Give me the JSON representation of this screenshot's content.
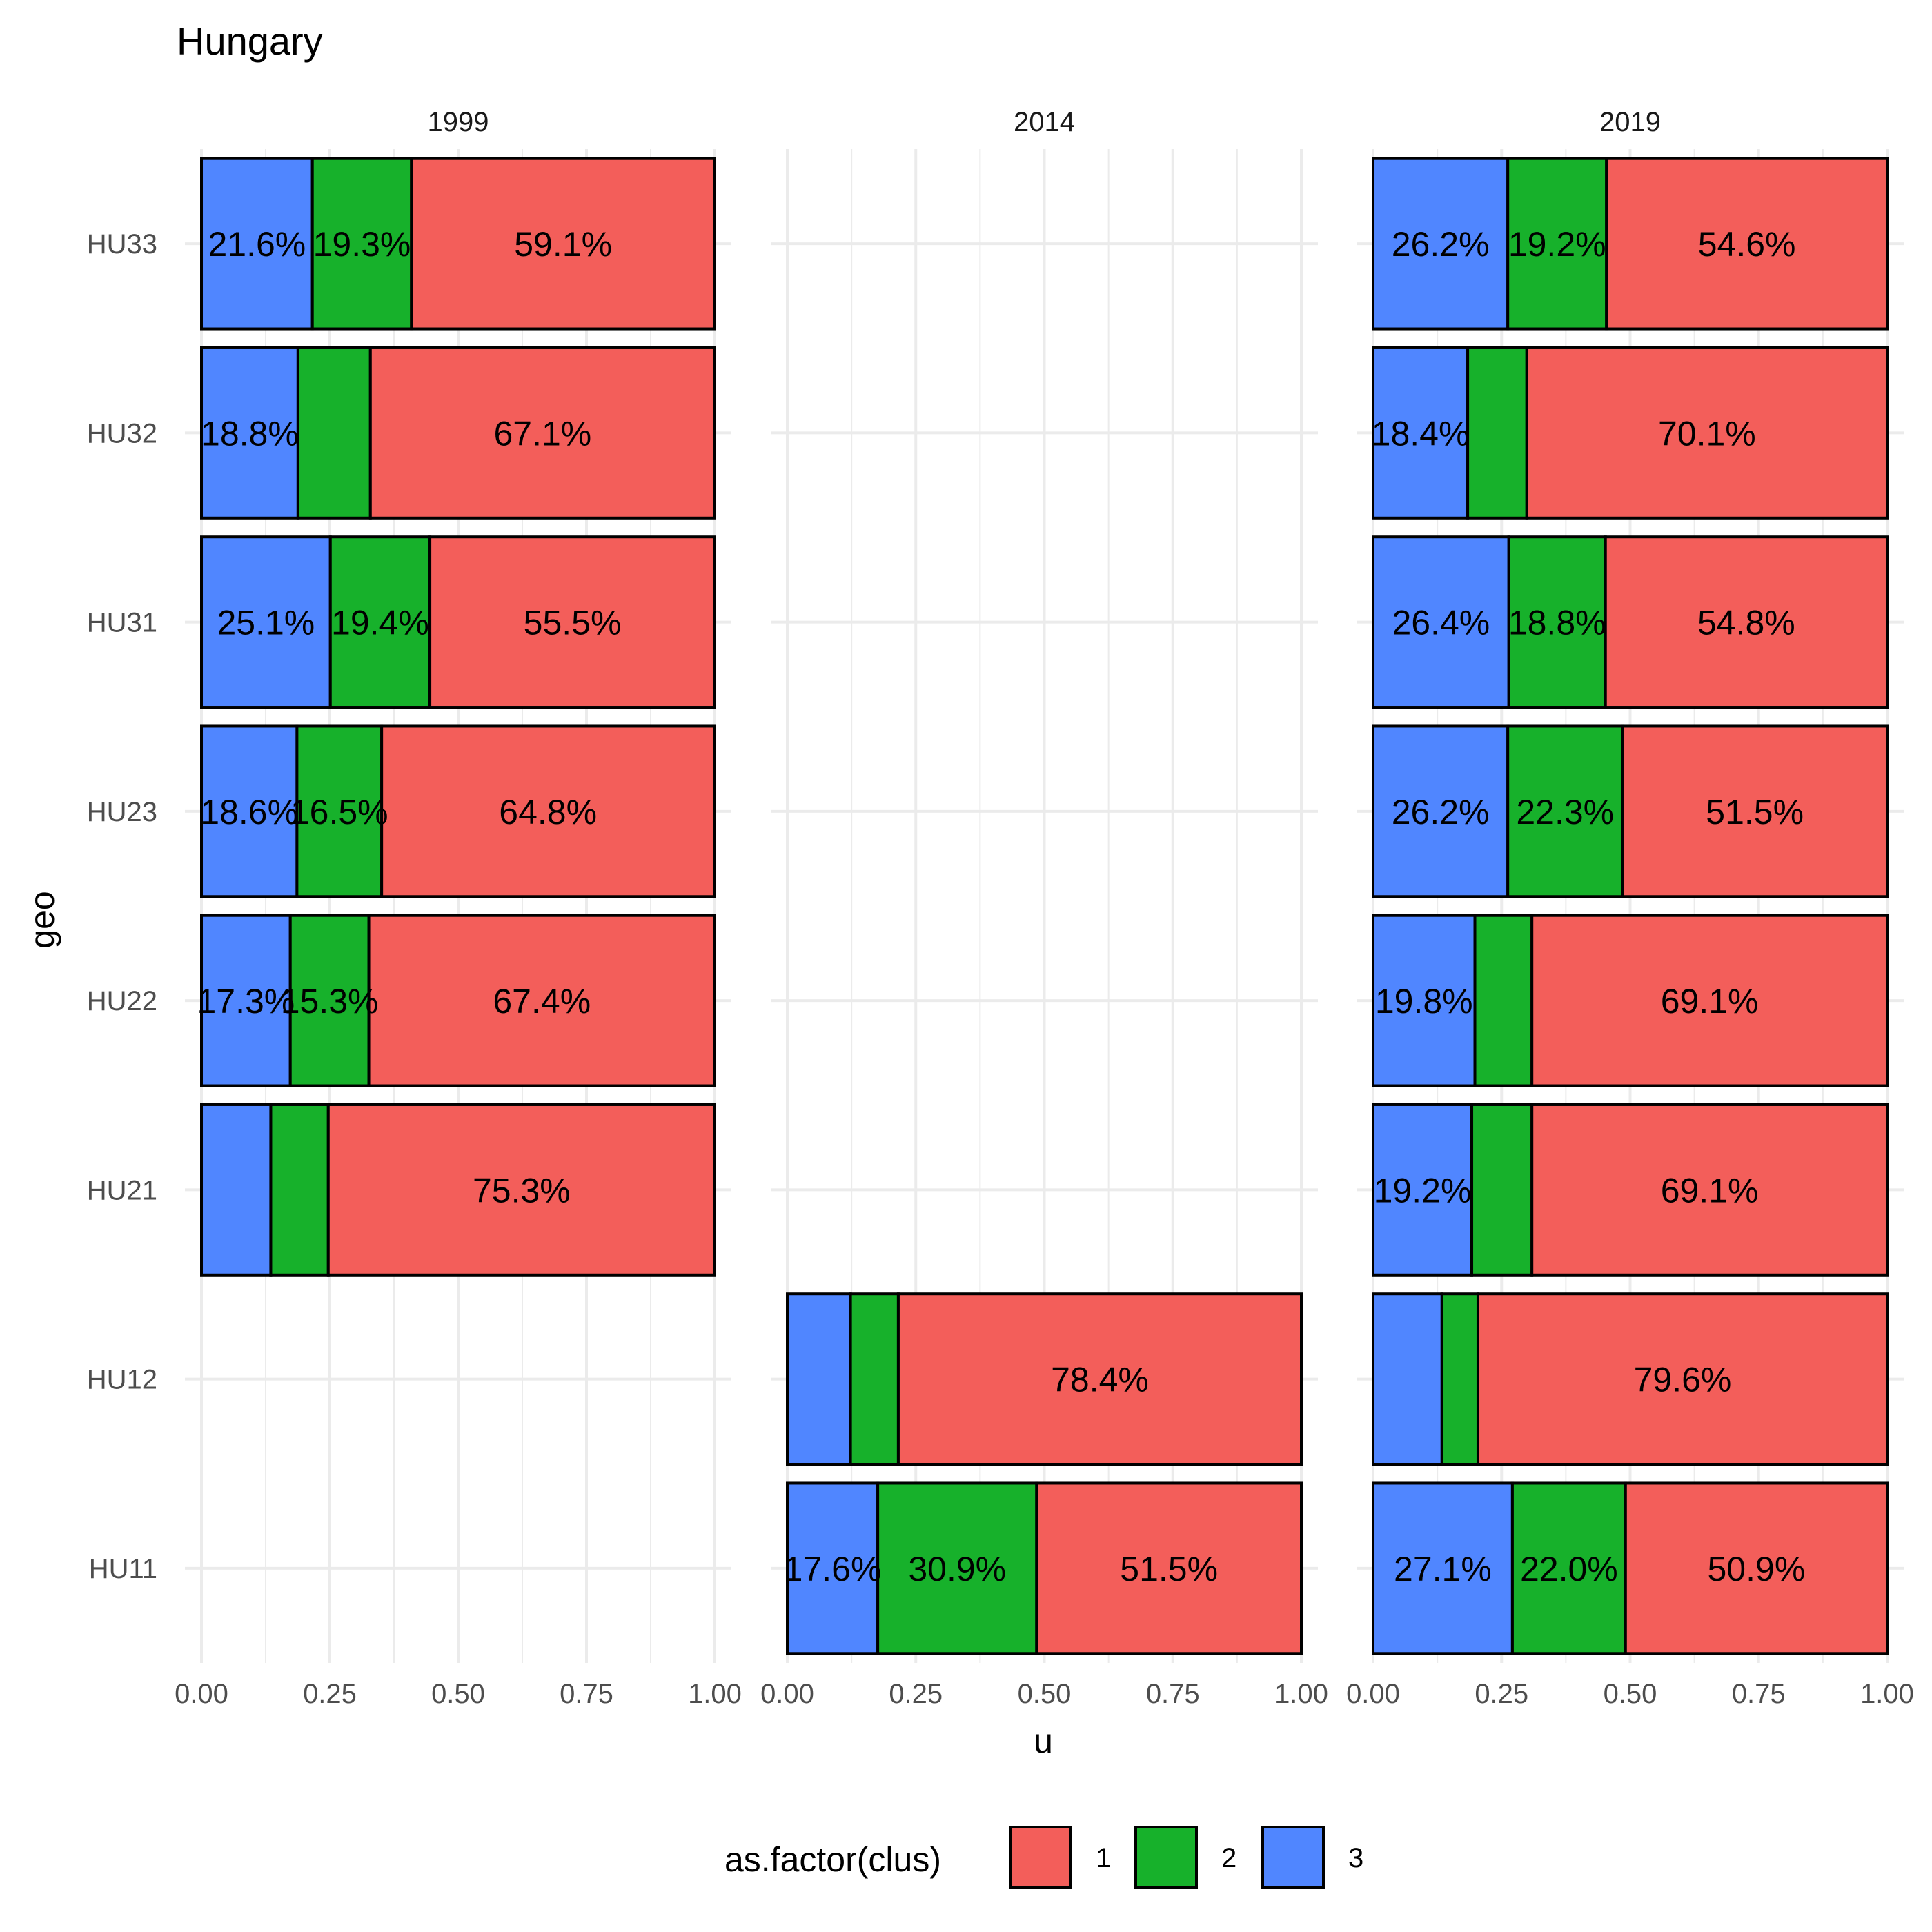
{
  "chart_data": {
    "type": "bar",
    "orientation": "horizontal",
    "stacked": true,
    "title": "Hungary",
    "xlabel": "u",
    "ylabel": "geo",
    "xlim": [
      0,
      1
    ],
    "x_ticks": [
      "0.00",
      "0.25",
      "0.50",
      "0.75",
      "1.00"
    ],
    "categories": [
      "HU11",
      "HU12",
      "HU21",
      "HU22",
      "HU23",
      "HU31",
      "HU32",
      "HU33"
    ],
    "legend": {
      "title": "as.factor(clus)",
      "position": "bottom",
      "entries": [
        {
          "key": "1",
          "label": "1",
          "color": "#F35E5A"
        },
        {
          "key": "2",
          "label": "2",
          "color": "#17B12B"
        },
        {
          "key": "3",
          "label": "3",
          "color": "#5086FF"
        }
      ]
    },
    "stack_order": [
      "3",
      "2",
      "1"
    ],
    "panels": [
      {
        "name": "1999",
        "bars": [
          {
            "geo": "HU33",
            "values": {
              "3": 0.216,
              "2": 0.193,
              "1": 0.591
            },
            "labels": {
              "3": "21.6%",
              "2": "19.3%",
              "1": "59.1%"
            }
          },
          {
            "geo": "HU32",
            "values": {
              "3": 0.188,
              "2": 0.141,
              "1": 0.671
            },
            "labels": {
              "3": "18.8%",
              "1": "67.1%"
            }
          },
          {
            "geo": "HU31",
            "values": {
              "3": 0.251,
              "2": 0.194,
              "1": 0.555
            },
            "labels": {
              "3": "25.1%",
              "2": "19.4%",
              "1": "55.5%"
            }
          },
          {
            "geo": "HU23",
            "values": {
              "3": 0.186,
              "2": 0.165,
              "1": 0.648
            },
            "labels": {
              "3": "18.6%",
              "2": "16.5%",
              "1": "64.8%"
            }
          },
          {
            "geo": "HU22",
            "values": {
              "3": 0.173,
              "2": 0.153,
              "1": 0.674
            },
            "labels": {
              "3": "17.3%",
              "2": "15.3%",
              "1": "67.4%"
            }
          },
          {
            "geo": "HU21",
            "values": {
              "3": 0.135,
              "2": 0.112,
              "1": 0.753
            },
            "labels": {
              "1": "75.3%"
            }
          }
        ]
      },
      {
        "name": "2014",
        "bars": [
          {
            "geo": "HU12",
            "values": {
              "3": 0.123,
              "2": 0.093,
              "1": 0.784
            },
            "labels": {
              "1": "78.4%"
            }
          },
          {
            "geo": "HU11",
            "values": {
              "3": 0.176,
              "2": 0.309,
              "1": 0.515
            },
            "labels": {
              "3": "17.6%",
              "2": "30.9%",
              "1": "51.5%"
            }
          }
        ]
      },
      {
        "name": "2019",
        "bars": [
          {
            "geo": "HU33",
            "values": {
              "3": 0.262,
              "2": 0.192,
              "1": 0.546
            },
            "labels": {
              "3": "26.2%",
              "2": "19.2%",
              "1": "54.6%"
            }
          },
          {
            "geo": "HU32",
            "values": {
              "3": 0.184,
              "2": 0.115,
              "1": 0.701
            },
            "labels": {
              "3": "18.4%",
              "1": "70.1%"
            }
          },
          {
            "geo": "HU31",
            "values": {
              "3": 0.264,
              "2": 0.188,
              "1": 0.548
            },
            "labels": {
              "3": "26.4%",
              "2": "18.8%",
              "1": "54.8%"
            }
          },
          {
            "geo": "HU23",
            "values": {
              "3": 0.262,
              "2": 0.223,
              "1": 0.515
            },
            "labels": {
              "3": "26.2%",
              "2": "22.3%",
              "1": "51.5%"
            }
          },
          {
            "geo": "HU22",
            "values": {
              "3": 0.198,
              "2": 0.111,
              "1": 0.691
            },
            "labels": {
              "3": "19.8%",
              "1": "69.1%"
            }
          },
          {
            "geo": "HU21",
            "values": {
              "3": 0.192,
              "2": 0.117,
              "1": 0.691
            },
            "labels": {
              "3": "19.2%",
              "1": "69.1%"
            }
          },
          {
            "geo": "HU12",
            "values": {
              "3": 0.134,
              "2": 0.07,
              "1": 0.796
            },
            "labels": {
              "1": "79.6%"
            }
          },
          {
            "geo": "HU11",
            "values": {
              "3": 0.271,
              "2": 0.22,
              "1": 0.509
            },
            "labels": {
              "3": "27.1%",
              "2": "22.0%",
              "1": "50.9%"
            }
          }
        ]
      }
    ]
  }
}
